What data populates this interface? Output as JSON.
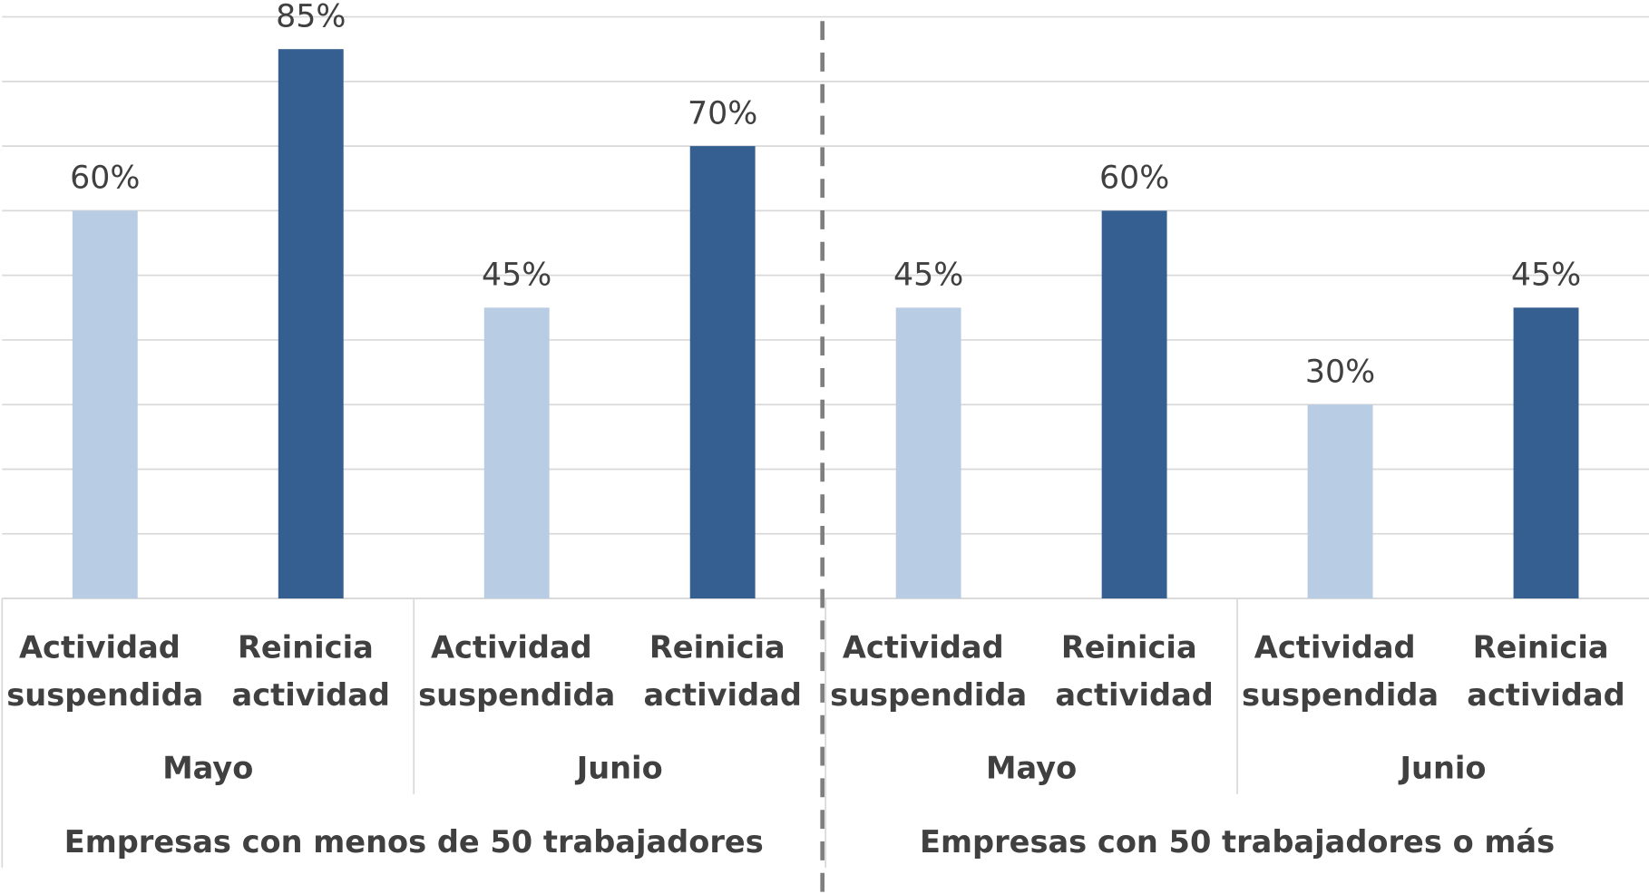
{
  "chart_data": {
    "type": "bar",
    "ylim": [
      0,
      90
    ],
    "yticks": [
      0,
      10,
      20,
      30,
      40,
      50,
      60,
      70,
      80,
      90
    ],
    "grid": true,
    "colors": [
      "#b8cce4",
      "#355f91"
    ],
    "groups": [
      {
        "name": "Empresas con menos de 50 trabajadores",
        "subgroups": [
          {
            "name": "Mayo",
            "categories": [
              "Actividad suspendida",
              "Reinicia actividad"
            ],
            "values": [
              60,
              85
            ],
            "value_labels": [
              "60%",
              "85%"
            ]
          },
          {
            "name": "Junio",
            "categories": [
              "Actividad suspendida",
              "Reinicia actividad"
            ],
            "values": [
              45,
              70
            ],
            "value_labels": [
              "45%",
              "70%"
            ]
          }
        ]
      },
      {
        "name": "Empresas con 50 trabajadores o más",
        "subgroups": [
          {
            "name": "Mayo",
            "categories": [
              "Actividad suspendida",
              "Reinicia actividad"
            ],
            "values": [
              45,
              60
            ],
            "value_labels": [
              "45%",
              "60%"
            ]
          },
          {
            "name": "Junio",
            "categories": [
              "Actividad suspendida",
              "Reinicia actividad"
            ],
            "values": [
              30,
              45
            ],
            "value_labels": [
              "30%",
              "45%"
            ]
          }
        ]
      }
    ]
  }
}
